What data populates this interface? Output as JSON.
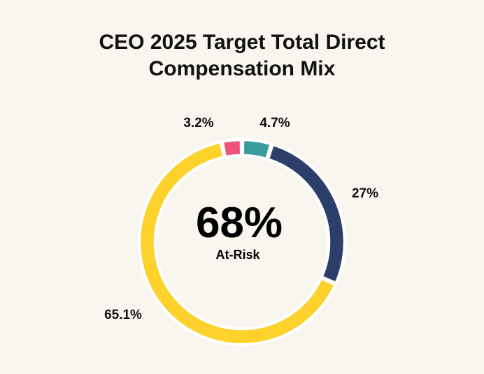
{
  "chart_data": {
    "type": "pie",
    "title_lines": [
      "CEO 2025 Target Total Direct",
      "Compensation Mix"
    ],
    "categories": [
      "",
      "",
      "",
      ""
    ],
    "values": [
      4.7,
      27,
      65.1,
      3.2
    ],
    "value_labels": [
      "4.7%",
      "27%",
      "65.1%",
      "3.2%"
    ],
    "colors": [
      "#3a9b9e",
      "#2c3f6b",
      "#fdd22d",
      "#ee5478"
    ],
    "center_value": "68%",
    "center_caption": "At-Risk"
  }
}
